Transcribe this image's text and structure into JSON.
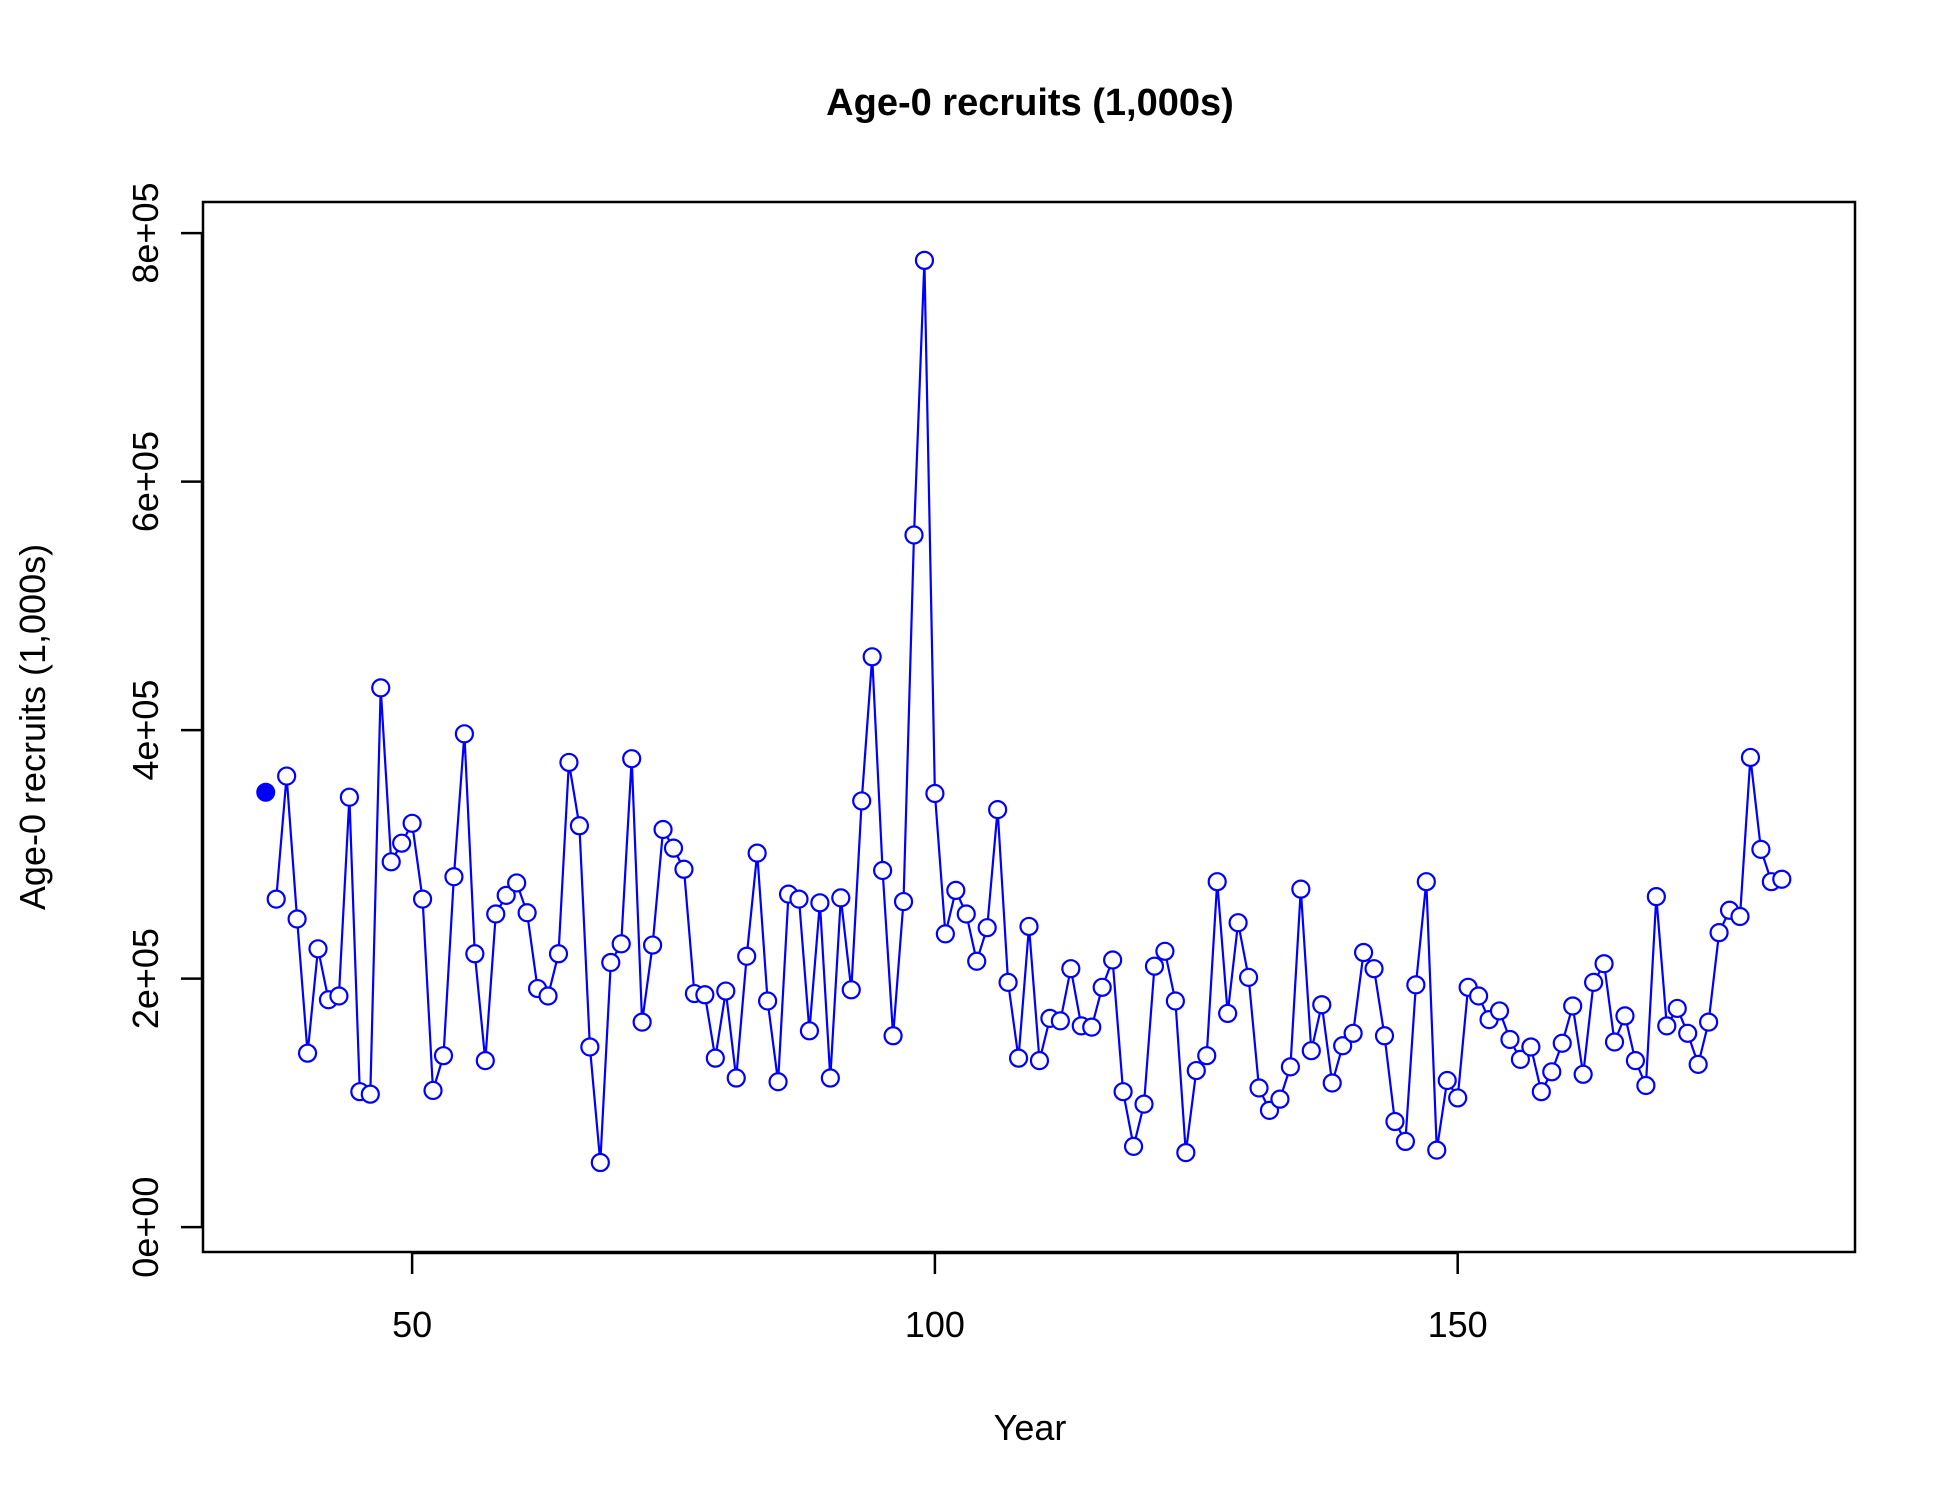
{
  "chart_data": {
    "type": "line",
    "title": "Age-0 recruits (1,000s)",
    "xlabel": "Year",
    "ylabel": "Age-0 recruits (1,000s)",
    "xlim": [
      30,
      188
    ],
    "ylim": [
      0,
      800000
    ],
    "x_ticks": [
      50,
      100,
      150
    ],
    "x_tick_labels": [
      "50",
      "100",
      "150"
    ],
    "y_ticks": [
      0,
      200000,
      400000,
      600000,
      800000
    ],
    "y_tick_labels": [
      "0e+00",
      "2e+05",
      "4e+05",
      "6e+05",
      "8e+05"
    ],
    "grid": false,
    "legend": "none",
    "colors": {
      "series": "#0000ff",
      "axis": "#000000"
    },
    "initial_point": {
      "x": 36,
      "y": 350000
    },
    "series": [
      {
        "x": [
          37,
          38,
          39,
          40,
          41,
          42,
          43,
          44,
          45,
          46,
          47,
          48,
          49,
          50,
          51,
          52,
          53,
          54,
          55,
          56,
          57,
          58,
          59,
          60,
          61,
          62,
          63,
          64,
          65,
          66,
          67,
          68,
          69,
          70,
          71,
          72,
          73,
          74,
          75,
          76,
          77,
          78,
          79,
          80,
          81,
          82,
          83,
          84,
          85,
          86,
          87,
          88,
          89,
          90,
          91,
          92,
          93,
          94,
          95,
          96,
          97,
          98,
          99,
          100,
          101,
          102,
          103,
          104,
          105,
          106,
          107,
          108,
          109,
          110,
          111,
          112,
          113,
          114,
          115,
          116,
          117,
          118,
          119,
          120,
          121,
          122,
          123,
          124,
          125,
          126,
          127,
          128,
          129,
          130,
          131,
          132,
          133,
          134,
          135,
          136,
          137,
          138,
          139,
          140,
          141,
          142,
          143,
          144,
          145,
          146,
          147,
          148,
          149,
          150,
          151,
          152,
          153,
          154,
          155,
          156,
          157,
          158,
          159,
          160,
          161,
          162,
          163,
          164,
          165,
          166,
          167,
          168,
          169,
          170,
          171,
          172,
          173,
          174,
          175,
          176,
          177,
          178,
          179,
          180,
          181
        ],
        "values": [
          264000,
          363000,
          248000,
          140000,
          224000,
          183000,
          186000,
          346000,
          109000,
          107000,
          434000,
          294000,
          309000,
          325000,
          264000,
          110000,
          138000,
          282000,
          397000,
          220000,
          134000,
          252000,
          267000,
          277000,
          253000,
          192000,
          186000,
          220000,
          374000,
          323000,
          145000,
          52000,
          213000,
          228000,
          377000,
          165000,
          227000,
          320000,
          305000,
          288000,
          188000,
          187000,
          136000,
          190000,
          120000,
          218000,
          301000,
          182000,
          117000,
          268000,
          264000,
          158000,
          261000,
          120000,
          265000,
          191000,
          343000,
          459000,
          287000,
          154000,
          262000,
          557000,
          778000,
          349000,
          236000,
          271000,
          252000,
          214000,
          241000,
          336000,
          197000,
          136000,
          242000,
          134000,
          168000,
          166000,
          208000,
          162000,
          161000,
          193000,
          215000,
          109000,
          65000,
          99000,
          210000,
          222000,
          182000,
          60000,
          126000,
          138000,
          278000,
          172000,
          245000,
          201000,
          112000,
          94000,
          103000,
          129000,
          272000,
          142000,
          179000,
          116000,
          146000,
          156000,
          221000,
          208000,
          154000,
          85000,
          69000,
          195000,
          278000,
          62000,
          118000,
          104000,
          193000,
          186000,
          167000,
          174000,
          151000,
          135000,
          145000,
          109000,
          125000,
          148000,
          178000,
          123000,
          197000,
          212000,
          149000,
          170000,
          134000,
          114000,
          266000,
          162000,
          176000,
          156000,
          131000,
          165000,
          237000,
          255000,
          250000,
          378000,
          304000,
          278000,
          280000
        ]
      }
    ]
  }
}
